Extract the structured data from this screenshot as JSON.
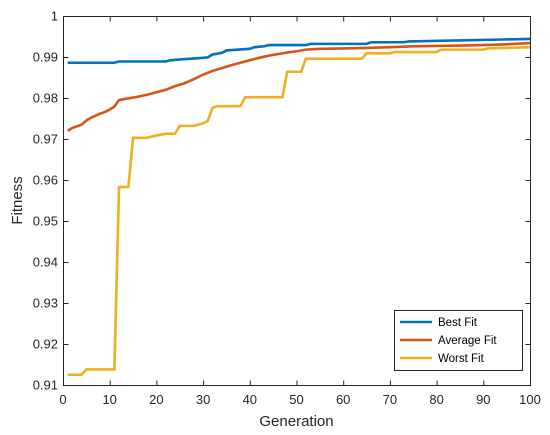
{
  "chart_data": {
    "type": "line",
    "title": "",
    "xlabel": "Generation",
    "ylabel": "Fitness",
    "xlim": [
      0,
      100
    ],
    "ylim": [
      0.91,
      1.0
    ],
    "xticks": [
      0,
      10,
      20,
      30,
      40,
      50,
      60,
      70,
      80,
      90,
      100
    ],
    "yticks": [
      0.91,
      0.92,
      0.93,
      0.94,
      0.95,
      0.96,
      0.97,
      0.98,
      0.99,
      1.0
    ],
    "ytick_labels": [
      "0.91",
      "0.92",
      "0.93",
      "0.94",
      "0.95",
      "0.96",
      "0.97",
      "0.98",
      "0.99",
      "1"
    ],
    "grid": false,
    "legend_position": "bottom-right",
    "series": [
      {
        "name": "Best Fit",
        "color": "#0072BD",
        "x": [
          1,
          11,
          12,
          22,
          23,
          25,
          29,
          31,
          32,
          34,
          35,
          40,
          41,
          43,
          44,
          52,
          53,
          65,
          66,
          73,
          74,
          100
        ],
        "y": [
          0.9886,
          0.9886,
          0.9889,
          0.9889,
          0.9892,
          0.9894,
          0.9897,
          0.9899,
          0.9906,
          0.991,
          0.9916,
          0.992,
          0.9924,
          0.9926,
          0.9929,
          0.9929,
          0.9932,
          0.9932,
          0.9936,
          0.9936,
          0.9938,
          0.9944
        ]
      },
      {
        "name": "Average Fit",
        "color": "#D95319",
        "x": [
          1,
          2,
          3,
          4,
          5,
          6,
          7,
          8,
          9,
          10,
          11,
          12,
          14,
          16,
          18,
          20,
          22,
          24,
          26,
          28,
          30,
          32,
          34,
          36,
          38,
          40,
          42,
          44,
          46,
          48,
          50,
          52,
          55,
          60,
          65,
          70,
          75,
          80,
          85,
          90,
          95,
          100
        ],
        "y": [
          0.972,
          0.9727,
          0.9731,
          0.9735,
          0.9745,
          0.9752,
          0.9757,
          0.9762,
          0.9766,
          0.9772,
          0.9779,
          0.9795,
          0.9799,
          0.9803,
          0.9808,
          0.9814,
          0.982,
          0.9829,
          0.9836,
          0.9846,
          0.9857,
          0.9866,
          0.9873,
          0.988,
          0.9886,
          0.9892,
          0.9898,
          0.9903,
          0.9907,
          0.9911,
          0.9914,
          0.9918,
          0.992,
          0.9921,
          0.9922,
          0.9924,
          0.9926,
          0.9927,
          0.9928,
          0.9929,
          0.9931,
          0.9934
        ]
      },
      {
        "name": "Worst Fit",
        "color": "#EDB120",
        "x": [
          1,
          4,
          5,
          11,
          12,
          14,
          15,
          18,
          19,
          22,
          24,
          25,
          28,
          30,
          31,
          32,
          33,
          38,
          39,
          47,
          48,
          51,
          52,
          64,
          65,
          70,
          71,
          80,
          81,
          90,
          91,
          100
        ],
        "y": [
          0.9125,
          0.9125,
          0.9138,
          0.9138,
          0.9583,
          0.9583,
          0.9703,
          0.9703,
          0.9706,
          0.9713,
          0.9713,
          0.9732,
          0.9732,
          0.9738,
          0.9744,
          0.9776,
          0.978,
          0.978,
          0.9802,
          0.9802,
          0.9864,
          0.9864,
          0.9896,
          0.9896,
          0.9909,
          0.9909,
          0.9912,
          0.9912,
          0.9918,
          0.9918,
          0.9921,
          0.9924
        ]
      }
    ]
  }
}
